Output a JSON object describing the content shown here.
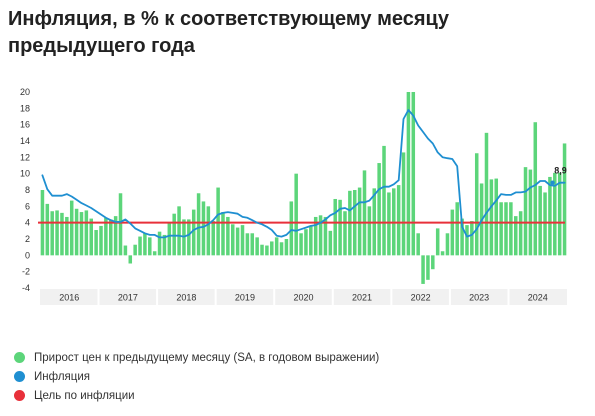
{
  "title": "Инфляция, в % к соответствующему месяцу предыдущего года",
  "legend": [
    {
      "label": "Прирост цен к предыдущему месяцу (SA, в годовом выражении)",
      "color": "#5cd57a"
    },
    {
      "label": "Инфляция",
      "color": "#1f8fd1"
    },
    {
      "label": "Цель по инфляции",
      "color": "#e8303a"
    }
  ],
  "chart_data": {
    "type": "bar+line",
    "ylim": [
      -4,
      20
    ],
    "yticks": [
      -4,
      -2,
      0,
      2,
      4,
      6,
      8,
      10,
      12,
      14,
      16,
      18,
      20
    ],
    "years": [
      "2016",
      "2017",
      "2018",
      "2019",
      "2020",
      "2021",
      "2022",
      "2023",
      "2024"
    ],
    "months_per_year": 12,
    "bars": {
      "name": "Прирост цен к предыдущему месяцу (SA, в годовом выражении)",
      "color": "#5cd57a",
      "values": [
        8.0,
        6.3,
        5.4,
        5.5,
        5.2,
        4.7,
        6.7,
        5.7,
        5.3,
        5.5,
        4.5,
        3.1,
        3.6,
        4.6,
        4.4,
        4.8,
        7.6,
        1.2,
        -1.0,
        1.3,
        2.3,
        2.7,
        2.2,
        0.5,
        2.9,
        2.5,
        4.0,
        5.1,
        6.0,
        4.4,
        4.4,
        5.6,
        7.6,
        6.6,
        6.0,
        4.2,
        8.3,
        5.3,
        4.7,
        3.8,
        3.4,
        3.7,
        2.7,
        2.7,
        2.2,
        1.3,
        1.2,
        1.7,
        2.2,
        1.6,
        2.0,
        6.6,
        10.0,
        2.7,
        3.2,
        3.6,
        4.7,
        4.9,
        4.7,
        3.0,
        6.9,
        6.8,
        5.4,
        7.9,
        8.0,
        8.3,
        10.4,
        6.0,
        8.2,
        11.3,
        13.4,
        7.7,
        8.2,
        8.6,
        12.6,
        20.0,
        20.0,
        2.7,
        -3.5,
        -3.0,
        -1.7,
        3.3,
        0.5,
        2.7,
        5.6,
        6.5,
        4.5,
        3.7,
        4.2,
        12.5,
        8.8,
        15.0,
        9.3,
        9.4,
        6.5,
        6.5,
        6.5,
        4.8,
        5.4,
        10.8,
        10.5,
        16.3,
        8.5,
        7.7,
        9.6,
        10.1,
        10.1,
        13.7
      ]
    },
    "line": {
      "name": "Инфляция",
      "color": "#1f8fd1",
      "values": [
        9.8,
        8.1,
        7.3,
        7.3,
        7.3,
        7.5,
        7.2,
        6.8,
        6.4,
        6.1,
        5.8,
        5.4,
        5.0,
        4.6,
        4.3,
        4.1,
        4.1,
        4.4,
        3.9,
        3.3,
        3.0,
        2.7,
        2.5,
        2.5,
        2.2,
        2.2,
        2.4,
        2.4,
        2.4,
        2.3,
        2.5,
        3.1,
        3.4,
        3.5,
        3.8,
        4.3,
        5.0,
        5.2,
        5.3,
        5.2,
        5.1,
        4.7,
        4.6,
        4.3,
        4.0,
        3.8,
        3.5,
        3.1,
        2.4,
        2.3,
        2.5,
        3.1,
        3.0,
        3.2,
        3.4,
        3.6,
        3.7,
        4.0,
        4.4,
        4.9,
        5.2,
        5.7,
        5.8,
        5.5,
        6.0,
        6.5,
        6.5,
        6.7,
        7.4,
        8.1,
        8.4,
        8.4,
        8.7,
        9.2,
        16.7,
        17.8,
        17.1,
        15.9,
        15.1,
        14.3,
        13.7,
        12.6,
        12.0,
        11.9,
        11.8,
        10.9,
        3.5,
        2.3,
        2.5,
        3.2,
        4.3,
        5.2,
        6.0,
        6.7,
        7.5,
        7.4,
        7.4,
        7.7,
        7.7,
        7.8,
        8.3,
        8.6,
        9.1,
        9.1,
        8.6,
        8.5,
        8.9,
        8.9
      ]
    },
    "target": {
      "name": "Цель по инфляции",
      "color": "#e8303a",
      "value": 4
    },
    "last_value_label": "8,9"
  }
}
